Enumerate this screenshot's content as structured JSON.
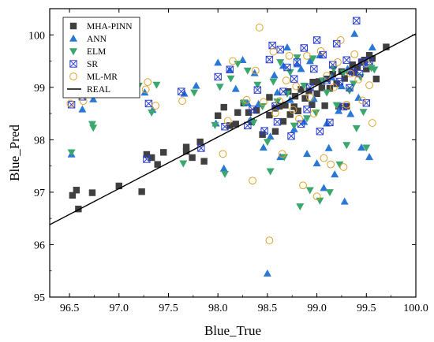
{
  "chart_data": {
    "type": "scatter",
    "xlabel": "Blue_True",
    "ylabel": "Blue_Pred",
    "xlim": [
      96.3,
      100.0
    ],
    "ylim": [
      95.0,
      100.5
    ],
    "x_ticks": [
      96.5,
      97.0,
      97.5,
      98.0,
      98.5,
      99.0,
      99.5,
      100.0
    ],
    "x_tick_labels": [
      "96.5",
      "97.0",
      "97.5",
      "98.0",
      "98.5",
      "99.0",
      "99.5",
      "100.0"
    ],
    "y_ticks": [
      95,
      96,
      97,
      98,
      99,
      100
    ],
    "y_tick_labels": [
      "95",
      "96",
      "97",
      "98",
      "99",
      "100"
    ],
    "grid": false,
    "legend_position": "top-left",
    "reference_line": {
      "name": "REAL",
      "x": [
        96.3,
        100.0
      ],
      "y": [
        96.38,
        100.02
      ],
      "color": "#000000"
    },
    "series": [
      {
        "name": "MHA-PINN",
        "marker": "square",
        "color": "#404040",
        "points": [
          [
            96.53,
            96.94
          ],
          [
            96.57,
            97.04
          ],
          [
            96.59,
            96.68
          ],
          [
            96.73,
            96.99
          ],
          [
            97.0,
            97.12
          ],
          [
            97.23,
            97.01
          ],
          [
            97.28,
            97.72
          ],
          [
            97.33,
            97.66
          ],
          [
            97.39,
            97.53
          ],
          [
            97.45,
            97.76
          ],
          [
            97.68,
            97.86
          ],
          [
            97.68,
            97.78
          ],
          [
            97.74,
            97.66
          ],
          [
            97.82,
            97.96
          ],
          [
            97.86,
            97.59
          ],
          [
            98.0,
            98.46
          ],
          [
            98.06,
            98.62
          ],
          [
            98.12,
            98.27
          ],
          [
            98.18,
            98.3
          ],
          [
            98.2,
            98.52
          ],
          [
            98.26,
            98.7
          ],
          [
            98.31,
            98.52
          ],
          [
            98.34,
            98.34
          ],
          [
            98.39,
            98.56
          ],
          [
            98.45,
            98.1
          ],
          [
            98.52,
            98.47
          ],
          [
            98.52,
            98.81
          ],
          [
            98.58,
            98.6
          ],
          [
            98.58,
            98.16
          ],
          [
            98.62,
            98.64
          ],
          [
            98.66,
            98.35
          ],
          [
            98.68,
            98.66
          ],
          [
            98.71,
            98.92
          ],
          [
            98.73,
            98.48
          ],
          [
            98.77,
            98.63
          ],
          [
            98.78,
            98.83
          ],
          [
            98.81,
            98.55
          ],
          [
            98.84,
            98.96
          ],
          [
            98.88,
            98.79
          ],
          [
            98.92,
            98.93
          ],
          [
            98.95,
            98.67
          ],
          [
            98.96,
            99.1
          ],
          [
            99.0,
            98.88
          ],
          [
            99.02,
            99.11
          ],
          [
            99.05,
            98.99
          ],
          [
            99.08,
            98.65
          ],
          [
            99.1,
            99.16
          ],
          [
            99.13,
            98.98
          ],
          [
            99.16,
            99.25
          ],
          [
            99.2,
            99.07
          ],
          [
            99.22,
            98.64
          ],
          [
            99.25,
            99.3
          ],
          [
            99.28,
            99.17
          ],
          [
            99.3,
            98.64
          ],
          [
            99.33,
            99.31
          ],
          [
            99.36,
            99.43
          ],
          [
            99.38,
            99.28
          ],
          [
            99.41,
            99.38
          ],
          [
            99.45,
            99.48
          ],
          [
            99.48,
            99.52
          ],
          [
            99.5,
            99.35
          ],
          [
            99.53,
            99.61
          ],
          [
            99.56,
            99.55
          ],
          [
            99.6,
            99.16
          ],
          [
            99.7,
            99.77
          ]
        ]
      },
      {
        "name": "ANN",
        "marker": "triangle-up",
        "color": "#2a78d6",
        "points": [
          [
            96.52,
            97.72
          ],
          [
            96.63,
            98.58
          ],
          [
            96.74,
            98.77
          ],
          [
            97.26,
            98.9
          ],
          [
            97.34,
            98.57
          ],
          [
            97.66,
            98.88
          ],
          [
            97.78,
            99.03
          ],
          [
            97.98,
            98.31
          ],
          [
            98.0,
            99.47
          ],
          [
            98.06,
            97.45
          ],
          [
            98.12,
            99.33
          ],
          [
            98.18,
            98.97
          ],
          [
            98.25,
            99.52
          ],
          [
            98.3,
            98.7
          ],
          [
            98.33,
            98.38
          ],
          [
            98.37,
            99.27
          ],
          [
            98.41,
            98.68
          ],
          [
            98.46,
            97.85
          ],
          [
            98.5,
            95.45
          ],
          [
            98.53,
            98.06
          ],
          [
            98.57,
            99.23
          ],
          [
            98.6,
            98.9
          ],
          [
            98.63,
            97.67
          ],
          [
            98.66,
            99.41
          ],
          [
            98.7,
            99.76
          ],
          [
            98.73,
            98.76
          ],
          [
            98.77,
            98.2
          ],
          [
            98.8,
            99.44
          ],
          [
            98.84,
            99.35
          ],
          [
            98.87,
            98.34
          ],
          [
            98.9,
            97.73
          ],
          [
            98.93,
            99.5
          ],
          [
            98.97,
            98.78
          ],
          [
            99.0,
            97.55
          ],
          [
            99.03,
            99.61
          ],
          [
            99.07,
            97.08
          ],
          [
            99.1,
            98.31
          ],
          [
            99.12,
            97.84
          ],
          [
            99.15,
            99.19
          ],
          [
            99.18,
            97.34
          ],
          [
            99.22,
            98.55
          ],
          [
            99.25,
            99.02
          ],
          [
            99.28,
            96.82
          ],
          [
            99.31,
            99.35
          ],
          [
            99.34,
            98.49
          ],
          [
            99.38,
            100.02
          ],
          [
            99.42,
            98.8
          ],
          [
            99.45,
            97.85
          ],
          [
            99.5,
            99.43
          ],
          [
            99.53,
            97.67
          ],
          [
            99.56,
            99.76
          ]
        ]
      },
      {
        "name": "ELM",
        "marker": "triangle-down",
        "color": "#3aa76d",
        "points": [
          [
            96.52,
            97.76
          ],
          [
            96.73,
            98.3
          ],
          [
            96.74,
            98.23
          ],
          [
            97.2,
            99.03
          ],
          [
            97.33,
            98.52
          ],
          [
            97.38,
            99.05
          ],
          [
            97.65,
            97.55
          ],
          [
            97.76,
            98.9
          ],
          [
            97.97,
            98.28
          ],
          [
            98.02,
            99.01
          ],
          [
            98.07,
            97.35
          ],
          [
            98.13,
            99.17
          ],
          [
            98.2,
            99.45
          ],
          [
            98.26,
            98.7
          ],
          [
            98.3,
            99.32
          ],
          [
            98.36,
            98.33
          ],
          [
            98.4,
            99.05
          ],
          [
            98.45,
            98.64
          ],
          [
            98.5,
            97.96
          ],
          [
            98.53,
            97.4
          ],
          [
            98.56,
            99.11
          ],
          [
            98.6,
            98.73
          ],
          [
            98.63,
            99.48
          ],
          [
            98.67,
            97.67
          ],
          [
            98.7,
            98.88
          ],
          [
            98.73,
            99.29
          ],
          [
            98.77,
            98.27
          ],
          [
            98.8,
            99.57
          ],
          [
            98.83,
            96.73
          ],
          [
            98.87,
            99.03
          ],
          [
            98.9,
            98.41
          ],
          [
            98.93,
            97.04
          ],
          [
            98.96,
            99.55
          ],
          [
            98.99,
            98.52
          ],
          [
            99.03,
            96.84
          ],
          [
            99.06,
            99.13
          ],
          [
            99.1,
            98.9
          ],
          [
            99.13,
            97.0
          ],
          [
            99.17,
            99.35
          ],
          [
            99.2,
            98.66
          ],
          [
            99.23,
            97.53
          ],
          [
            99.27,
            99.28
          ],
          [
            99.3,
            97.9
          ],
          [
            99.33,
            98.94
          ],
          [
            99.37,
            99.07
          ],
          [
            99.4,
            98.22
          ],
          [
            99.44,
            99.2
          ],
          [
            99.47,
            98.53
          ],
          [
            99.5,
            97.85
          ],
          [
            99.55,
            99.37
          ],
          [
            99.58,
            99.34
          ]
        ]
      },
      {
        "name": "SR",
        "marker": "cross-square",
        "color": "#2b3fd1",
        "points": [
          [
            96.52,
            98.67
          ],
          [
            96.63,
            98.82
          ],
          [
            97.3,
            98.69
          ],
          [
            97.28,
            97.63
          ],
          [
            97.63,
            98.92
          ],
          [
            97.83,
            97.84
          ],
          [
            98.0,
            99.2
          ],
          [
            98.07,
            98.25
          ],
          [
            98.12,
            99.34
          ],
          [
            98.3,
            98.27
          ],
          [
            98.35,
            98.58
          ],
          [
            98.4,
            98.95
          ],
          [
            98.47,
            98.17
          ],
          [
            98.52,
            99.53
          ],
          [
            98.55,
            99.8
          ],
          [
            98.58,
            98.64
          ],
          [
            98.6,
            98.34
          ],
          [
            98.63,
            99.72
          ],
          [
            98.66,
            98.92
          ],
          [
            98.7,
            99.38
          ],
          [
            98.74,
            98.07
          ],
          [
            98.77,
            99.16
          ],
          [
            98.8,
            99.48
          ],
          [
            98.84,
            98.3
          ],
          [
            98.87,
            99.75
          ],
          [
            98.9,
            98.58
          ],
          [
            98.93,
            99.0
          ],
          [
            98.97,
            99.35
          ],
          [
            99.0,
            99.9
          ],
          [
            99.03,
            98.16
          ],
          [
            99.06,
            99.62
          ],
          [
            99.1,
            99.13
          ],
          [
            99.13,
            98.33
          ],
          [
            99.16,
            99.43
          ],
          [
            99.2,
            99.83
          ],
          [
            99.23,
            99.11
          ],
          [
            99.27,
            98.63
          ],
          [
            99.3,
            99.52
          ],
          [
            99.33,
            98.99
          ],
          [
            99.36,
            99.3
          ],
          [
            99.4,
            100.27
          ],
          [
            99.43,
            99.26
          ],
          [
            99.46,
            99.48
          ],
          [
            99.5,
            98.7
          ],
          [
            99.53,
            99.5
          ]
        ]
      },
      {
        "name": "ML-MR",
        "marker": "circle",
        "color": "#e0a22e",
        "points": [
          [
            96.51,
            98.69
          ],
          [
            96.64,
            98.74
          ],
          [
            97.27,
            98.96
          ],
          [
            97.29,
            99.1
          ],
          [
            97.37,
            98.65
          ],
          [
            97.64,
            98.74
          ],
          [
            98.05,
            97.73
          ],
          [
            98.1,
            98.36
          ],
          [
            98.15,
            99.5
          ],
          [
            98.29,
            98.76
          ],
          [
            98.35,
            97.22
          ],
          [
            98.38,
            99.32
          ],
          [
            98.42,
            100.14
          ],
          [
            98.46,
            98.72
          ],
          [
            98.52,
            96.08
          ],
          [
            98.56,
            99.68
          ],
          [
            98.58,
            98.51
          ],
          [
            98.62,
            98.74
          ],
          [
            98.65,
            97.73
          ],
          [
            98.69,
            99.13
          ],
          [
            98.72,
            99.6
          ],
          [
            98.76,
            98.57
          ],
          [
            98.79,
            99.02
          ],
          [
            98.82,
            98.4
          ],
          [
            98.86,
            97.13
          ],
          [
            98.9,
            99.6
          ],
          [
            98.93,
            98.81
          ],
          [
            98.97,
            98.5
          ],
          [
            99.0,
            96.92
          ],
          [
            99.04,
            99.69
          ],
          [
            99.07,
            97.65
          ],
          [
            99.1,
            99.22
          ],
          [
            99.14,
            97.53
          ],
          [
            99.17,
            99.0
          ],
          [
            99.21,
            99.48
          ],
          [
            99.24,
            99.9
          ],
          [
            99.27,
            97.48
          ],
          [
            99.3,
            98.67
          ],
          [
            99.34,
            99.26
          ],
          [
            99.38,
            99.63
          ],
          [
            99.42,
            99.15
          ],
          [
            99.46,
            98.75
          ],
          [
            99.5,
            99.46
          ],
          [
            99.53,
            99.04
          ],
          [
            99.56,
            98.32
          ]
        ]
      }
    ]
  }
}
